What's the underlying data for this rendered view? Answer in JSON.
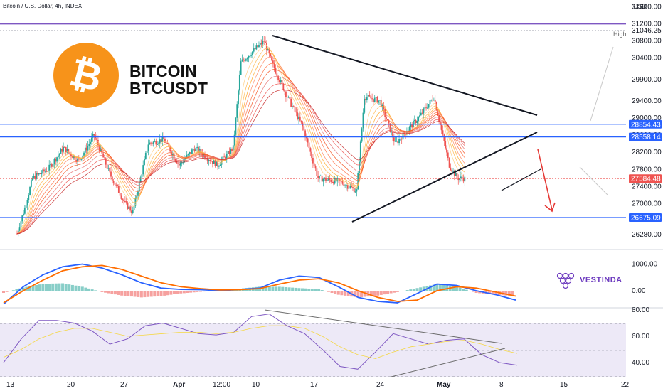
{
  "header": {
    "symbol_text": "Bitcoin / U.S. Dollar, 4h, INDEX",
    "currency": "USD"
  },
  "brand": {
    "title_line1": "BITCOIN",
    "title_line2": "BTCUSDT",
    "logo_color": "#f7931a",
    "vestinda_label": "VESTINDA",
    "vestinda_color": "#6d3bbf"
  },
  "colors": {
    "up": "#26a69a",
    "down": "#ef5350",
    "hline_blue": "#2962ff",
    "hline_purple": "#7e57c2",
    "macd": "#2962ff",
    "signal": "#ff6d00",
    "rsi": "#7e57c2",
    "rsi_ma": "#f5d742"
  },
  "chart_data": [
    {
      "type": "candlestick",
      "title": "Bitcoin / U.S. Dollar, 4h, INDEX",
      "ylim": [
        26000,
        31700
      ],
      "y_ticks": [
        26280,
        26675,
        27000,
        27400,
        27800,
        28200,
        28600,
        29000,
        29400,
        29900,
        30400,
        30800,
        31200,
        31600
      ],
      "x_ticks": [
        "13",
        "20",
        "27",
        "Apr",
        "12:00",
        "10",
        "17",
        "24",
        "May",
        "8",
        "15",
        "22"
      ],
      "approx_path": [
        {
          "x": "Mar 13",
          "y": 26300
        },
        {
          "x": "Mar 14",
          "y": 26900
        },
        {
          "x": "Mar 15",
          "y": 27600
        },
        {
          "x": "Mar 17",
          "y": 27800
        },
        {
          "x": "Mar 19",
          "y": 28300
        },
        {
          "x": "Mar 21",
          "y": 28000
        },
        {
          "x": "Mar 23",
          "y": 28600
        },
        {
          "x": "Mar 25",
          "y": 27700
        },
        {
          "x": "Mar 27",
          "y": 27000
        },
        {
          "x": "Mar 28",
          "y": 26800
        },
        {
          "x": "Mar 30",
          "y": 28400
        },
        {
          "x": "Apr 1",
          "y": 28500
        },
        {
          "x": "Apr 3",
          "y": 27900
        },
        {
          "x": "Apr 5",
          "y": 28300
        },
        {
          "x": "Apr 8",
          "y": 27900
        },
        {
          "x": "Apr 10",
          "y": 28300
        },
        {
          "x": "Apr 11",
          "y": 30300
        },
        {
          "x": "Apr 14",
          "y": 30800
        },
        {
          "x": "Apr 15",
          "y": 30300
        },
        {
          "x": "Apr 17",
          "y": 29500
        },
        {
          "x": "Apr 19",
          "y": 28800
        },
        {
          "x": "Apr 21",
          "y": 27600
        },
        {
          "x": "Apr 24",
          "y": 27500
        },
        {
          "x": "Apr 26",
          "y": 27300
        },
        {
          "x": "Apr 27",
          "y": 29500
        },
        {
          "x": "Apr 29",
          "y": 29400
        },
        {
          "x": "May 1",
          "y": 28400
        },
        {
          "x": "May 2",
          "y": 28600
        },
        {
          "x": "May 4",
          "y": 29000
        },
        {
          "x": "May 6",
          "y": 29500
        },
        {
          "x": "May 7",
          "y": 28700
        },
        {
          "x": "May 8",
          "y": 27900
        },
        {
          "x": "May 9",
          "y": 27600
        },
        {
          "x": "May 10",
          "y": 27584
        }
      ],
      "horizontal_levels": [
        {
          "value": 31200,
          "color": "#7e57c2"
        },
        {
          "value": 31046.25,
          "label": "High",
          "color": "#b2b5be"
        },
        {
          "value": 28854.43,
          "color": "#2962ff"
        },
        {
          "value": 28558.14,
          "color": "#2962ff"
        },
        {
          "value": 27584.48,
          "color": "#ef5350"
        },
        {
          "value": 26675.09,
          "color": "#2962ff"
        }
      ],
      "tag_labels": [
        "31046.25",
        "28854.43",
        "28558.14",
        "27584.48",
        "26675.09"
      ],
      "annotations": [
        "High"
      ]
    },
    {
      "type": "line",
      "ylim": [
        -700,
        1300
      ],
      "y_ticks": [
        1000,
        0
      ],
      "y_tick_labels": [
        "1000.00",
        "0.00"
      ],
      "series": [
        {
          "values": [
            -500,
            150,
            600,
            900,
            1000,
            850,
            600,
            300,
            100,
            50,
            40,
            0,
            50,
            100,
            400,
            550,
            500,
            150,
            -250,
            -400,
            -450,
            -100,
            250,
            200,
            0,
            -150,
            -350
          ]
        },
        {
          "values": [
            -450,
            0,
            400,
            750,
            900,
            950,
            800,
            550,
            300,
            150,
            80,
            30,
            40,
            80,
            250,
            400,
            450,
            300,
            0,
            -250,
            -400,
            -350,
            0,
            150,
            100,
            -50,
            -200
          ]
        }
      ],
      "histogram": [
        -80,
        120,
        260,
        280,
        150,
        -50,
        -180,
        -250,
        -200,
        -100,
        -40,
        20,
        80,
        150,
        150,
        100,
        60,
        -150,
        -250,
        -180,
        -50,
        100,
        250,
        150,
        -80,
        -150,
        -200
      ]
    },
    {
      "type": "line",
      "ylim": [
        32,
        82
      ],
      "y_ticks": [
        80,
        60,
        40
      ],
      "y_tick_labels": [
        "80.00",
        "60.00",
        "40.00"
      ],
      "series": [
        {
          "values": [
            40,
            58,
            72,
            72,
            70,
            64,
            54,
            58,
            68,
            70,
            66,
            62,
            61,
            63,
            75,
            77,
            68,
            62,
            50,
            37,
            35,
            48,
            62,
            58,
            54,
            57,
            58,
            46,
            40,
            38
          ]
        },
        {
          "values": [
            44,
            50,
            58,
            63,
            66,
            66,
            63,
            60,
            61,
            62,
            63,
            63,
            62,
            63,
            66,
            68,
            68,
            66,
            60,
            52,
            46,
            43,
            48,
            52,
            54,
            56,
            57,
            54,
            50,
            47
          ]
        }
      ]
    }
  ]
}
